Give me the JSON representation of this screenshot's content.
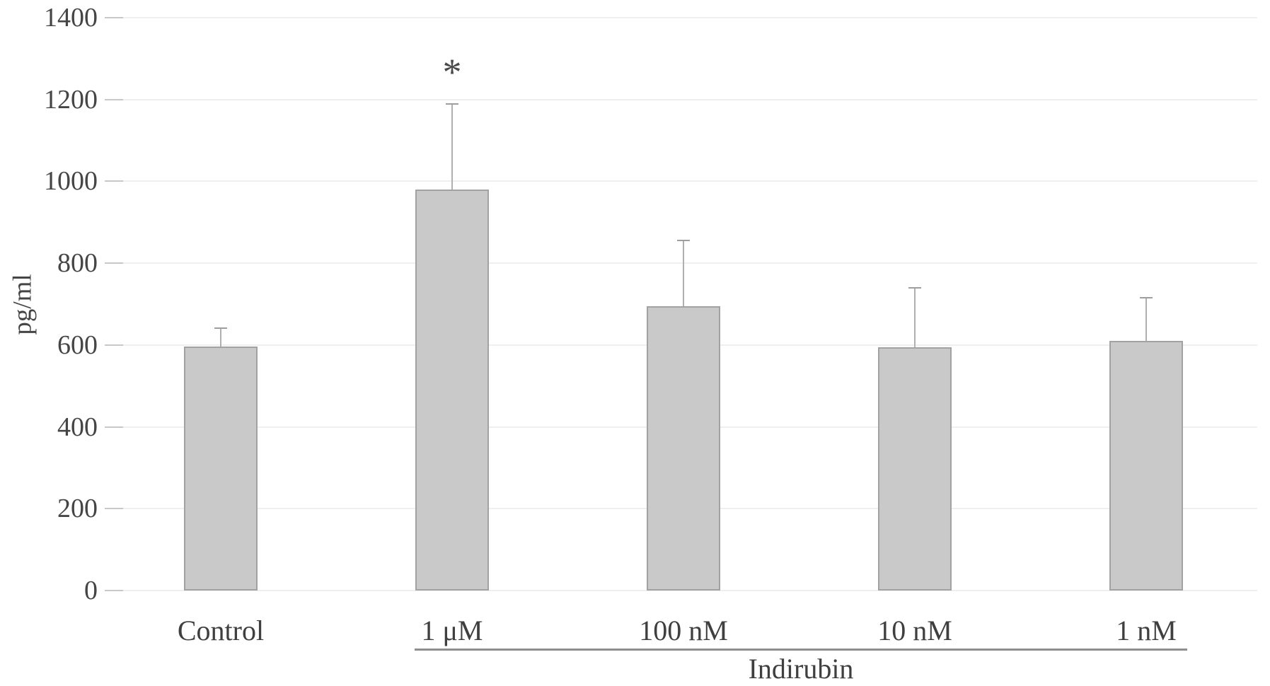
{
  "chart_data": {
    "type": "bar",
    "title": "",
    "ylabel": "pg/ml",
    "xlabel": "",
    "categories": [
      "Control",
      "1 μM",
      "100 nM",
      "10 nM",
      "1 nM"
    ],
    "values": [
      597,
      980,
      695,
      595,
      610
    ],
    "error_plus": [
      45,
      210,
      160,
      145,
      105
    ],
    "significance": [
      "",
      "*",
      "",
      "",
      ""
    ],
    "group_label": "Indirubin",
    "group_members": [
      "1 μM",
      "100 nM",
      "10 nM",
      "1 nM"
    ],
    "ylim": [
      0,
      1400
    ],
    "yticks": [
      0,
      200,
      400,
      600,
      800,
      1000,
      1200,
      1400
    ],
    "grid": true,
    "legend": "none",
    "colors": {
      "bar_fill": "#c9c9c9",
      "bar_border": "#a2a2a2",
      "error_bar_line": "#b0b0b0",
      "error_bar_cap": "#9e9e9e",
      "gridline": "#efefef",
      "tick_mark": "#c8c8c8",
      "text": "#454545",
      "group_line": "#8e8e8e",
      "background": "#ffffff"
    }
  }
}
